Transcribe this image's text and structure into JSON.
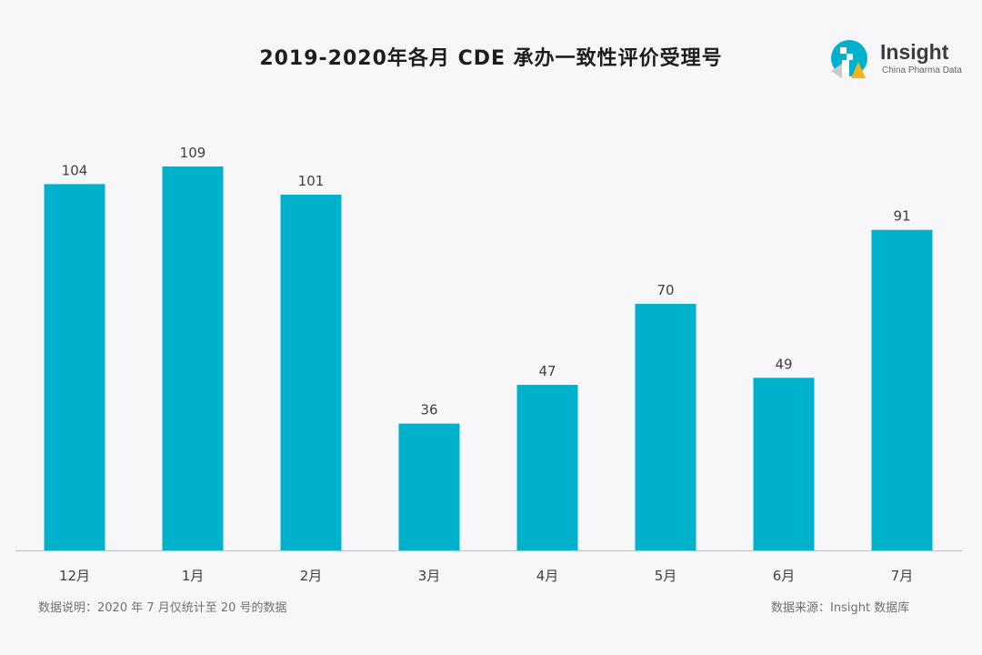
{
  "chart_data": {
    "type": "bar",
    "title": "2019-2020年各月 CDE 承办一致性评价受理号",
    "categories": [
      "12月",
      "1月",
      "2月",
      "3月",
      "4月",
      "5月",
      "6月",
      "7月"
    ],
    "values": [
      104,
      109,
      101,
      36,
      47,
      70,
      49,
      91
    ],
    "ylim": [
      0,
      109
    ],
    "bar_color": "#00b1cb",
    "grid": false,
    "legend": "none"
  },
  "logo": {
    "brand": "Insight",
    "tagline": "China Pharma Data"
  },
  "notes": {
    "data_note": "数据说明：2020 年 7 月仅统计至 20 号的数据",
    "data_source": "数据来源：Insight 数据库"
  }
}
